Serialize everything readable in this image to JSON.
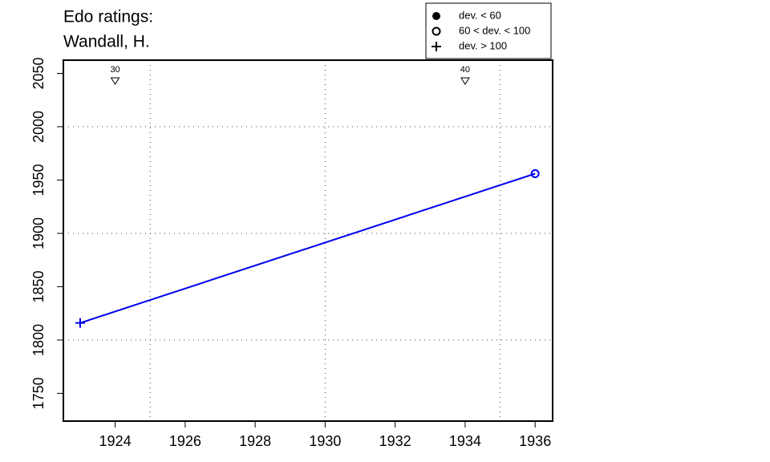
{
  "chart_data": {
    "type": "line",
    "title": "Edo ratings:",
    "subtitle": "Wandall, H.",
    "x": [
      1923,
      1936
    ],
    "series": [
      {
        "color": "#0000ee",
        "values": [
          1816,
          1956
        ],
        "markers": [
          "plus",
          "circle-open"
        ]
      }
    ],
    "xlim": [
      1922.52,
      1936.5
    ],
    "ylim": [
      1724,
      2062.4
    ],
    "xticks": [
      1924,
      1926,
      1928,
      1930,
      1932,
      1934,
      1936
    ],
    "yticks": [
      1750,
      1800,
      1850,
      1900,
      1950,
      2000,
      2050
    ],
    "xgrid": [
      1925,
      1930,
      1935
    ],
    "ygrid": [
      1800,
      1900,
      2000
    ],
    "annotations": [
      {
        "x": 1924,
        "label": "30"
      },
      {
        "x": 1934,
        "label": "40"
      }
    ],
    "legend": {
      "position": "top-right",
      "items": [
        {
          "label": "dev. < 60",
          "marker": "dot"
        },
        {
          "label": "60 < dev. < 100",
          "marker": "circle-open"
        },
        {
          "label": "dev. > 100",
          "marker": "plus"
        }
      ]
    }
  }
}
